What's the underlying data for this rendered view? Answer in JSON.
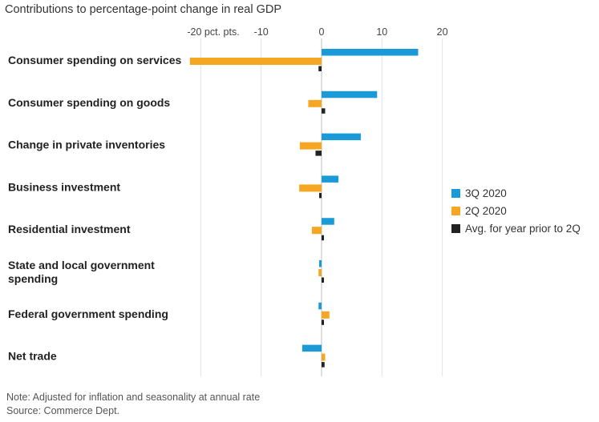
{
  "chart_data": {
    "type": "bar",
    "orientation": "horizontal",
    "title": "Contributions to percentage-point change in real GDP",
    "x_axis": {
      "min": -22,
      "max": 24,
      "ticks": [
        {
          "value": -20,
          "label": "-20 pct. pts."
        },
        {
          "value": -10,
          "label": "-10"
        },
        {
          "value": 0,
          "label": "0"
        },
        {
          "value": 10,
          "label": "10"
        },
        {
          "value": 20,
          "label": "20"
        }
      ],
      "grid": true
    },
    "categories": [
      [
        "Consumer spending on services"
      ],
      [
        "Consumer spending on goods"
      ],
      [
        "Change in private inventories"
      ],
      [
        "Business investment"
      ],
      [
        "Residential investment"
      ],
      [
        "State and local government",
        "spending"
      ],
      [
        "Federal government spending"
      ],
      [
        "Net trade"
      ]
    ],
    "series": [
      {
        "name": "3Q 2020",
        "color": "#1a9bd7",
        "values": [
          16.0,
          9.2,
          6.5,
          2.8,
          2.1,
          -0.4,
          -0.5,
          -3.2
        ]
      },
      {
        "name": "2Q 2020",
        "color": "#f5a623",
        "values": [
          -21.8,
          -2.2,
          -3.6,
          -3.7,
          -1.6,
          -0.5,
          1.3,
          0.6
        ]
      },
      {
        "name": "Avg. for year prior to 2Q",
        "color": "#222222",
        "values": [
          -0.5,
          0.6,
          -1.0,
          -0.2,
          0.2,
          0.1,
          0.2,
          0.5
        ]
      }
    ],
    "legend_position": "right",
    "note": "Note: Adjusted for inflation and seasonality at annual rate",
    "source": "Source: Commerce Dept."
  }
}
